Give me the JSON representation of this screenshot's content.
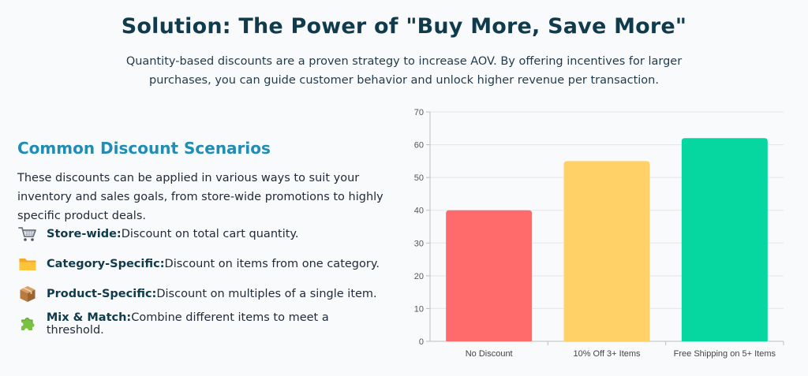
{
  "header": {
    "title": "Solution: The Power of \"Buy More, Save More\"",
    "intro": "Quantity-based discounts are a proven strategy to increase AOV. By offering incentives for larger purchases, you can guide customer behavior and unlock higher revenue per transaction."
  },
  "scenarios": {
    "heading": "Common Discount Scenarios",
    "description": "These discounts can be applied in various ways to suit your inventory and sales goals, from store-wide promotions to highly specific product deals.",
    "items": [
      {
        "icon": "shopping-cart-icon",
        "title": "Store-wide:",
        "text": "Discount on total cart quantity."
      },
      {
        "icon": "folder-icon",
        "title": "Category-Specific:",
        "text": "Discount on items from one category."
      },
      {
        "icon": "package-icon",
        "title": "Product-Specific:",
        "text": "Discount on multiples of a single item."
      },
      {
        "icon": "puzzle-piece-icon",
        "title": "Mix & Match:",
        "text": "Combine different items to meet a threshold."
      }
    ]
  },
  "chart_data": {
    "type": "bar",
    "categories": [
      "No Discount",
      "10% Off 3+ Items",
      "Free Shipping on 5+ Items"
    ],
    "values": [
      40,
      55,
      62
    ],
    "colors": [
      "#ff6b6b",
      "#ffd166",
      "#06d6a0"
    ],
    "ylim": [
      0,
      70
    ],
    "yticks": [
      0,
      10,
      20,
      30,
      40,
      50,
      60,
      70
    ],
    "grid": true,
    "legend": "none",
    "title": "",
    "xlabel": "",
    "ylabel": ""
  }
}
